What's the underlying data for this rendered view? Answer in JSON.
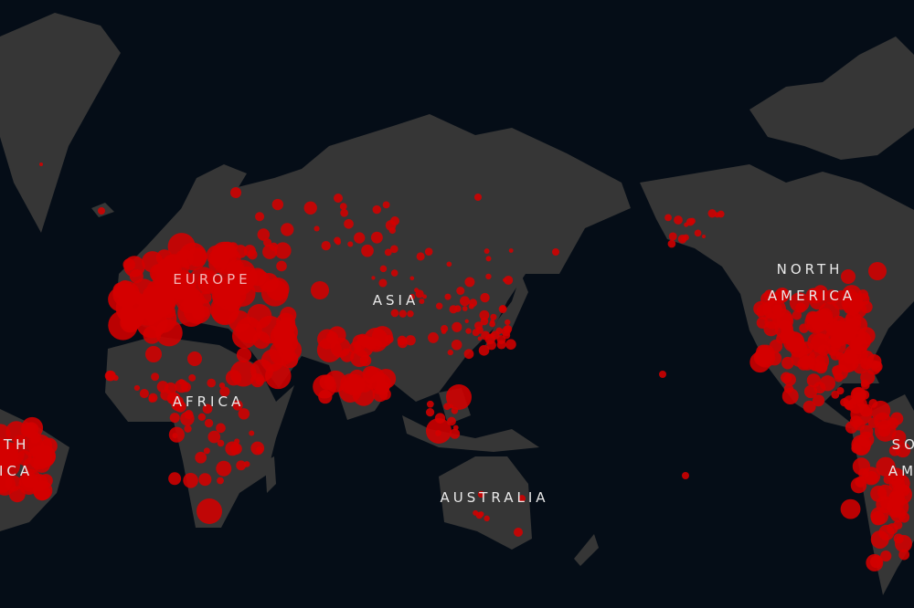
{
  "map": {
    "colors": {
      "ocean": "#050d17",
      "land": "#363636",
      "marker": "#d40000"
    },
    "labels": {
      "europe": "EUROPE",
      "asia": "ASIA",
      "africa": "AFRICA",
      "north_america_1": "NORTH",
      "north_america_2": "AMERICA",
      "australia": "AUSTRALIA",
      "south_america_1": "SOUTH",
      "south_america_2": "AMERICA"
    }
  }
}
